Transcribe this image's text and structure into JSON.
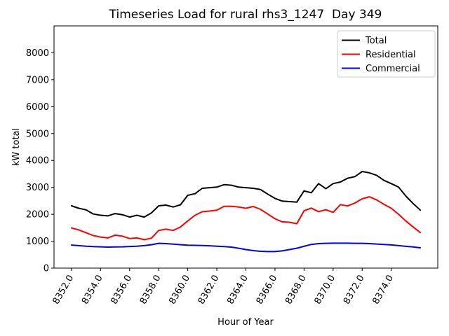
{
  "chart_data": {
    "type": "line",
    "title": "Timeseries Load for rural rhs3_1247  Day 349",
    "xlabel": "Hour of Year",
    "ylabel": "kW total",
    "xlim": [
      8350.8,
      8377.2
    ],
    "ylim": [
      0,
      9000
    ],
    "grid": false,
    "legend_position": "upper right",
    "x_ticks": [
      8352,
      8354,
      8356,
      8358,
      8360,
      8362,
      8364,
      8366,
      8368,
      8370,
      8372,
      8374
    ],
    "x_tick_labels": [
      "8352.0",
      "8354.0",
      "8356.0",
      "8358.0",
      "8360.0",
      "8362.0",
      "8364.0",
      "8366.0",
      "8368.0",
      "8370.0",
      "8372.0",
      "8374.0"
    ],
    "x_tick_rotation_deg": 60,
    "y_ticks": [
      0,
      1000,
      2000,
      3000,
      4000,
      5000,
      6000,
      7000,
      8000
    ],
    "y_tick_labels": [
      "0",
      "1000",
      "2000",
      "3000",
      "4000",
      "5000",
      "6000",
      "7000",
      "8000"
    ],
    "x": [
      8352.0,
      8352.5,
      8353.0,
      8353.5,
      8354.0,
      8354.5,
      8355.0,
      8355.5,
      8356.0,
      8356.5,
      8357.0,
      8357.5,
      8358.0,
      8358.5,
      8359.0,
      8359.5,
      8360.0,
      8360.5,
      8361.0,
      8361.5,
      8362.0,
      8362.5,
      8363.0,
      8363.5,
      8364.0,
      8364.5,
      8365.0,
      8365.5,
      8366.0,
      8366.5,
      8367.0,
      8367.5,
      8368.0,
      8368.5,
      8369.0,
      8369.5,
      8370.0,
      8370.5,
      8371.0,
      8371.5,
      8372.0,
      8372.5,
      8373.0,
      8373.5,
      8374.0,
      8374.5,
      8375.0,
      8375.5,
      8376.0
    ],
    "series": [
      {
        "name": "Total",
        "color": "#000000",
        "values": [
          2315,
          2225,
          2165,
          2010,
          1965,
          1940,
          2025,
          1985,
          1895,
          1965,
          1895,
          2050,
          2315,
          2340,
          2270,
          2355,
          2705,
          2765,
          2965,
          2990,
          3010,
          3100,
          3080,
          3010,
          2990,
          2965,
          2920,
          2750,
          2590,
          2490,
          2470,
          2450,
          2870,
          2800,
          3140,
          2950,
          3140,
          3200,
          3340,
          3400,
          3590,
          3540,
          3445,
          3260,
          3140,
          3010,
          2680,
          2400,
          2155
        ]
      },
      {
        "name": "Residential",
        "color": "#ff0000",
        "values": [
          1490,
          1420,
          1315,
          1210,
          1155,
          1120,
          1225,
          1185,
          1100,
          1120,
          1055,
          1110,
          1400,
          1445,
          1400,
          1530,
          1750,
          1965,
          2095,
          2120,
          2155,
          2295,
          2300,
          2270,
          2225,
          2290,
          2185,
          2010,
          1835,
          1720,
          1705,
          1650,
          2130,
          2230,
          2100,
          2170,
          2070,
          2360,
          2310,
          2420,
          2575,
          2650,
          2530,
          2370,
          2225,
          2000,
          1750,
          1530,
          1320
        ]
      },
      {
        "name": "Commercial",
        "color": "#0000ff",
        "values": [
          855,
          835,
          815,
          800,
          790,
          780,
          785,
          790,
          805,
          815,
          835,
          870,
          920,
          910,
          890,
          870,
          850,
          845,
          840,
          830,
          815,
          800,
          780,
          740,
          690,
          650,
          625,
          615,
          615,
          640,
          690,
          740,
          810,
          880,
          910,
          920,
          925,
          925,
          925,
          920,
          920,
          910,
          895,
          880,
          860,
          835,
          810,
          785,
          755
        ]
      }
    ],
    "legend_frame_color": "#cccccc",
    "axis_color": "#000000",
    "background_color": "#ffffff"
  }
}
